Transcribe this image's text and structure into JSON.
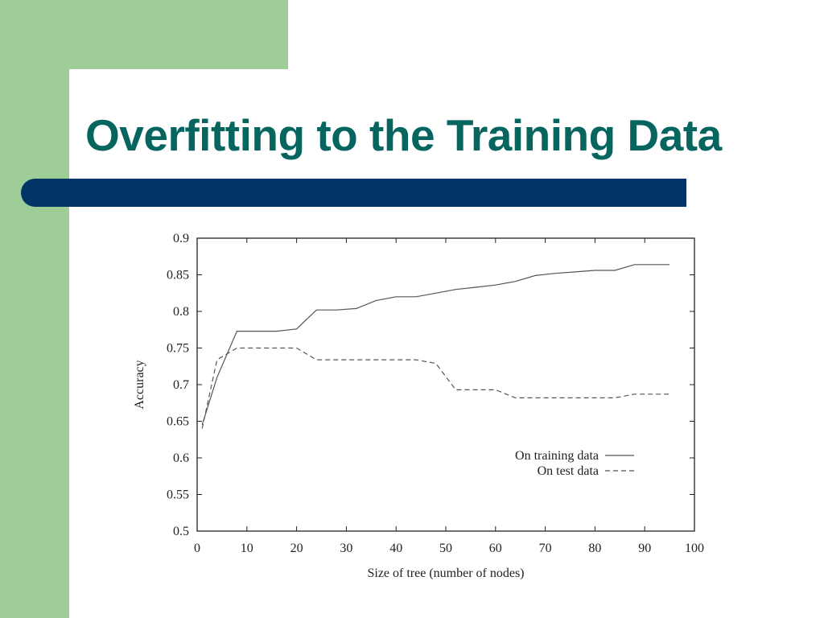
{
  "slide": {
    "title": "Overfitting to the Training Data",
    "colors": {
      "green": "#9fcd97",
      "title": "#06665f",
      "bar": "#023468"
    }
  },
  "chart_data": {
    "type": "line",
    "xlabel": "Size of tree (number of nodes)",
    "ylabel": "Accuracy",
    "xlim": [
      0,
      100
    ],
    "ylim": [
      0.5,
      0.9
    ],
    "xticks": [
      0,
      10,
      20,
      30,
      40,
      50,
      60,
      70,
      80,
      90,
      100
    ],
    "yticks": [
      0.5,
      0.55,
      0.6,
      0.65,
      0.7,
      0.75,
      0.8,
      0.85,
      0.9
    ],
    "xtick_labels": [
      "0",
      "10",
      "20",
      "30",
      "40",
      "50",
      "60",
      "70",
      "80",
      "90",
      "100"
    ],
    "ytick_labels": [
      "0.5",
      "0.55",
      "0.6",
      "0.65",
      "0.7",
      "0.75",
      "0.8",
      "0.85",
      "0.9"
    ],
    "legend_position": "lower-right",
    "grid": false,
    "series": [
      {
        "name": "On training data",
        "style": "solid",
        "points": [
          [
            1,
            0.645
          ],
          [
            4,
            0.71
          ],
          [
            8,
            0.773
          ],
          [
            12,
            0.773
          ],
          [
            16,
            0.773
          ],
          [
            20,
            0.776
          ],
          [
            24,
            0.802
          ],
          [
            28,
            0.802
          ],
          [
            32,
            0.804
          ],
          [
            36,
            0.815
          ],
          [
            40,
            0.82
          ],
          [
            44,
            0.82
          ],
          [
            48,
            0.825
          ],
          [
            52,
            0.83
          ],
          [
            56,
            0.833
          ],
          [
            60,
            0.836
          ],
          [
            64,
            0.841
          ],
          [
            68,
            0.849
          ],
          [
            72,
            0.852
          ],
          [
            76,
            0.854
          ],
          [
            80,
            0.856
          ],
          [
            84,
            0.856
          ],
          [
            88,
            0.864
          ],
          [
            92,
            0.864
          ],
          [
            95,
            0.864
          ]
        ]
      },
      {
        "name": "On test data",
        "style": "dashed",
        "points": [
          [
            1,
            0.64
          ],
          [
            4,
            0.734
          ],
          [
            8,
            0.75
          ],
          [
            12,
            0.75
          ],
          [
            16,
            0.75
          ],
          [
            20,
            0.75
          ],
          [
            24,
            0.734
          ],
          [
            28,
            0.734
          ],
          [
            32,
            0.734
          ],
          [
            36,
            0.734
          ],
          [
            40,
            0.734
          ],
          [
            44,
            0.734
          ],
          [
            48,
            0.729
          ],
          [
            52,
            0.693
          ],
          [
            56,
            0.693
          ],
          [
            60,
            0.693
          ],
          [
            64,
            0.682
          ],
          [
            68,
            0.682
          ],
          [
            72,
            0.682
          ],
          [
            76,
            0.682
          ],
          [
            80,
            0.682
          ],
          [
            84,
            0.682
          ],
          [
            88,
            0.687
          ],
          [
            92,
            0.687
          ],
          [
            95,
            0.687
          ]
        ]
      }
    ]
  }
}
